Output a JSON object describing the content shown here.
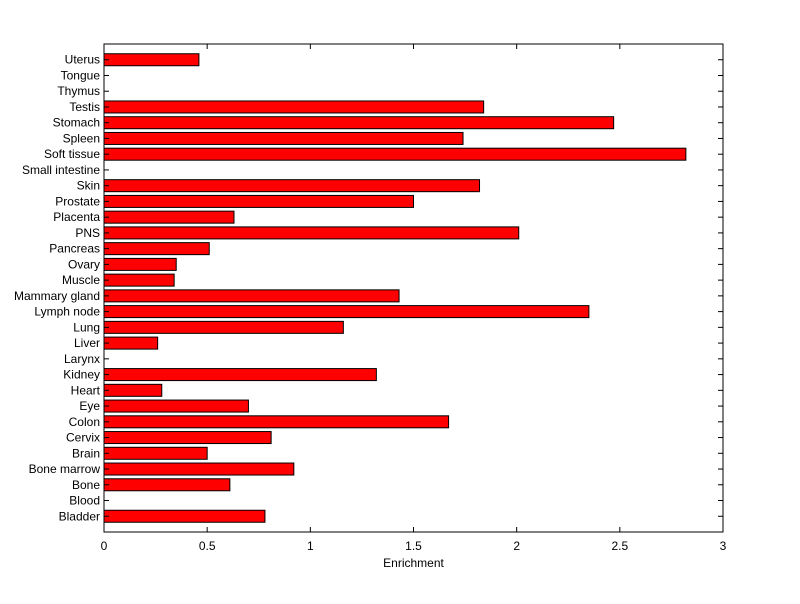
{
  "chart_data": {
    "type": "bar",
    "orientation": "horizontal",
    "xlabel": "Enrichment",
    "ylabel": "",
    "title": "",
    "xlim": [
      0,
      3
    ],
    "x_ticks": [
      0,
      0.5,
      1,
      1.5,
      2,
      2.5,
      3
    ],
    "x_tick_labels": [
      "0",
      "0.5",
      "1",
      "1.5",
      "2",
      "2.5",
      "3"
    ],
    "grid": false,
    "bar_color": "#ff0000",
    "bar_edge_color": "#000000",
    "categories": [
      "Bladder",
      "Blood",
      "Bone",
      "Bone marrow",
      "Brain",
      "Cervix",
      "Colon",
      "Eye",
      "Heart",
      "Kidney",
      "Larynx",
      "Liver",
      "Lung",
      "Lymph node",
      "Mammary gland",
      "Muscle",
      "Ovary",
      "Pancreas",
      "PNS",
      "Placenta",
      "Prostate",
      "Skin",
      "Small intestine",
      "Soft tissue",
      "Spleen",
      "Stomach",
      "Testis",
      "Thymus",
      "Tongue",
      "Uterus"
    ],
    "values": [
      0.78,
      0,
      0.61,
      0.92,
      0.5,
      0.81,
      1.67,
      0.7,
      0.28,
      1.32,
      0,
      0.26,
      1.16,
      2.35,
      1.43,
      0.34,
      0.35,
      0.51,
      2.01,
      0.63,
      1.5,
      1.82,
      0,
      2.82,
      1.74,
      2.47,
      1.84,
      0,
      0,
      0.46
    ]
  }
}
